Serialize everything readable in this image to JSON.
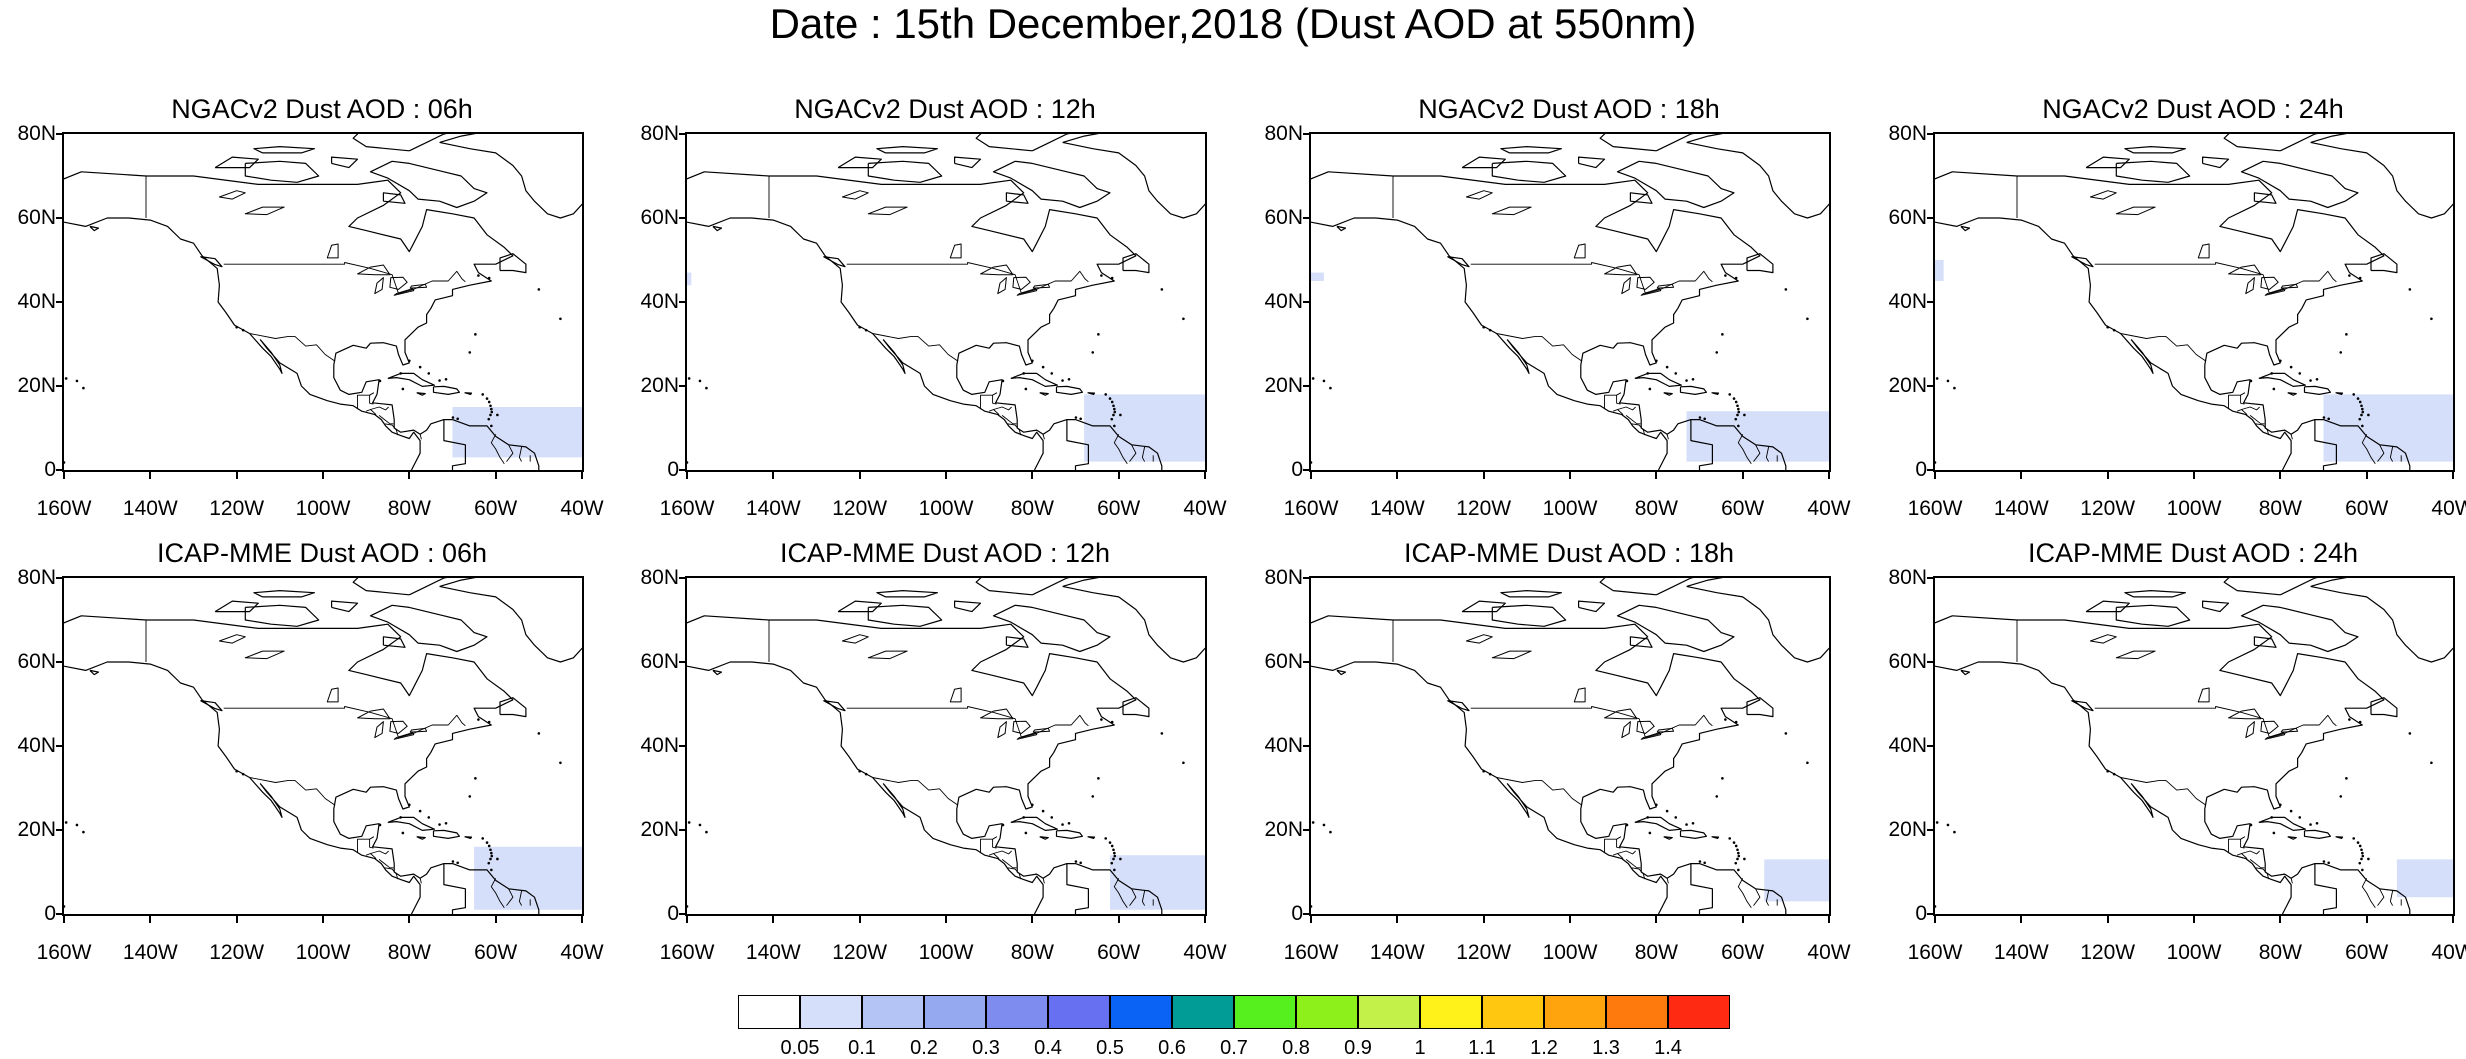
{
  "figure": {
    "title": "Date : 15th December,2018 (Dust AOD at 550nm)"
  },
  "axes": {
    "y_ticks": [
      "80N",
      "60N",
      "40N",
      "20N",
      "0"
    ],
    "x_ticks": [
      "160W",
      "140W",
      "120W",
      "100W",
      "80W",
      "60W",
      "40W"
    ]
  },
  "panels": [
    {
      "title": "NGACv2 Dust AOD : 06h",
      "dust": [
        {
          "aod_range": "0.05-0.1",
          "lon": [
            -70,
            -40
          ],
          "lat": [
            3,
            15
          ]
        }
      ]
    },
    {
      "title": "NGACv2 Dust AOD : 12h",
      "dust": [
        {
          "aod_range": "0.05-0.1",
          "lon": [
            -68,
            -40
          ],
          "lat": [
            2,
            18
          ]
        },
        {
          "aod_range": "0.05-0.1",
          "lon": [
            -160,
            -159
          ],
          "lat": [
            44,
            47
          ]
        }
      ]
    },
    {
      "title": "NGACv2 Dust AOD : 18h",
      "dust": [
        {
          "aod_range": "0.05-0.1",
          "lon": [
            -73,
            -40
          ],
          "lat": [
            2,
            14
          ]
        },
        {
          "aod_range": "0.05-0.1",
          "lon": [
            -160,
            -157
          ],
          "lat": [
            45,
            47
          ]
        }
      ]
    },
    {
      "title": "NGACv2 Dust AOD : 24h",
      "dust": [
        {
          "aod_range": "0.05-0.1",
          "lon": [
            -70,
            -40
          ],
          "lat": [
            2,
            18
          ]
        },
        {
          "aod_range": "0.05-0.1",
          "lon": [
            -160,
            -158
          ],
          "lat": [
            45,
            50
          ]
        }
      ]
    },
    {
      "title": "ICAP-MME Dust AOD : 06h",
      "dust": [
        {
          "aod_range": "0.05-0.1",
          "lon": [
            -65,
            -40
          ],
          "lat": [
            1,
            16
          ]
        }
      ]
    },
    {
      "title": "ICAP-MME Dust AOD : 12h",
      "dust": [
        {
          "aod_range": "0.05-0.1",
          "lon": [
            -62,
            -40
          ],
          "lat": [
            1,
            14
          ]
        }
      ]
    },
    {
      "title": "ICAP-MME Dust AOD : 18h",
      "dust": [
        {
          "aod_range": "0.05-0.1",
          "lon": [
            -55,
            -40
          ],
          "lat": [
            3,
            13
          ]
        }
      ]
    },
    {
      "title": "ICAP-MME Dust AOD : 24h",
      "dust": [
        {
          "aod_range": "0.05-0.1",
          "lon": [
            -53,
            -40
          ],
          "lat": [
            4,
            13
          ]
        }
      ]
    }
  ],
  "colorbar": {
    "labels": [
      "0.05",
      "0.1",
      "0.2",
      "0.3",
      "0.4",
      "0.5",
      "0.6",
      "0.7",
      "0.8",
      "0.9",
      "1",
      "1.1",
      "1.2",
      "1.3",
      "1.4"
    ],
    "colors": [
      "#ffffff",
      "#d6dffa",
      "#b4c5f5",
      "#95a9f0",
      "#7f8cef",
      "#6670f0",
      "#0a63f5",
      "#009c95",
      "#55f01e",
      "#8ef01a",
      "#c4f04a",
      "#fff21a",
      "#ffc70f",
      "#ffa40d",
      "#ff7a0d",
      "#ff2a12"
    ]
  },
  "chart_data": {
    "type": "heatmap",
    "title": "Date : 15th December,2018 (Dust AOD at 550nm)",
    "lon_range": [
      -160,
      -40
    ],
    "lat_range": [
      0,
      80
    ],
    "grid": false,
    "legend_position": "bottom",
    "note_values": "Only the lowest non-zero class (0.05-0.1) is visible in all panels."
  }
}
